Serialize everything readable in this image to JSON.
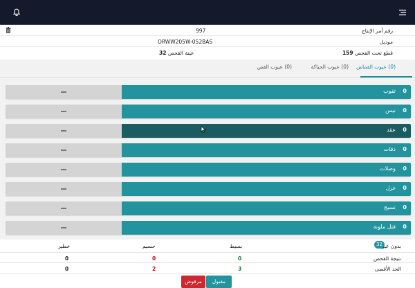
{
  "header": {
    "bell_icon": "bell-icon",
    "menu_icon": "menu-icon"
  },
  "info": {
    "order_label": "رقم أمر الإنتاج",
    "order_value": "997",
    "model_label": "موديل",
    "model_value": "ORWW205W-052BAS",
    "pieces_label": "قطع تحت الفحص",
    "pieces_value": "159",
    "sample_label": "عينة الفحص",
    "sample_value": "32"
  },
  "tabs": [
    {
      "label": "(0) عيوب القماش",
      "active": true
    },
    {
      "label": "(0) عيوب الحياكة",
      "active": false
    },
    {
      "label": "(0) عيوب القص",
      "active": false
    }
  ],
  "defects": [
    {
      "name": "ثقوب",
      "count": "0"
    },
    {
      "name": "نيس",
      "count": "0"
    },
    {
      "name": "عقد",
      "count": "0"
    },
    {
      "name": "دقات",
      "count": "0"
    },
    {
      "name": "وصلات",
      "count": "0"
    },
    {
      "name": "غزل",
      "count": "0"
    },
    {
      "name": "نسيج",
      "count": "0"
    },
    {
      "name": "فتل ملونة",
      "count": "0"
    }
  ],
  "summary": {
    "no_defects_label": "بدون عيوب:",
    "no_defects_value": "32",
    "col_simple": "بسيط",
    "col_major": "جسيم",
    "col_critical": "خطير",
    "result_label": "نتيجة الفحص",
    "result_simple": "0",
    "result_major": "0",
    "result_critical": "0",
    "max_label": "الحد الأقصى",
    "max_simple": "3",
    "max_major": "2",
    "max_critical": "0"
  },
  "buttons": {
    "accept": "مقبول",
    "reject": "مرفوض"
  },
  "colors": {
    "accent": "#23939e",
    "accent_hover": "#1b5c60",
    "danger": "#d0262f",
    "topbar": "#141a2c"
  }
}
